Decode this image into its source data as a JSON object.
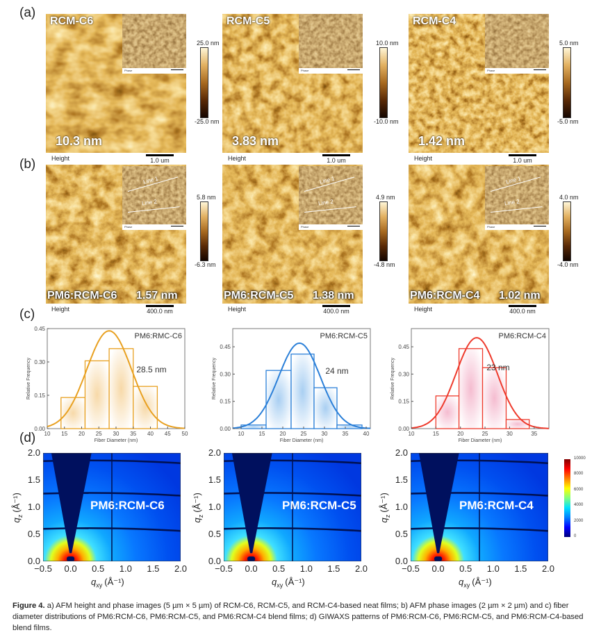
{
  "panel_labels": [
    "(a)",
    "(b)",
    "(c)",
    "(d)"
  ],
  "afm_neat": [
    {
      "name": "RCM-C6",
      "roughness": "10.3 nm",
      "cbar_max": "25.0 nm",
      "cbar_min": "-25.0 nm",
      "mode": "Height",
      "scale": "1.0 um",
      "inset_mode": "Phase"
    },
    {
      "name": "RCM-C5",
      "roughness": "3.83 nm",
      "cbar_max": "10.0 nm",
      "cbar_min": "-10.0 nm",
      "mode": "Height",
      "scale": "1.0 um",
      "inset_mode": "Phase"
    },
    {
      "name": "RCM-C4",
      "roughness": "1.42 nm",
      "cbar_max": "5.0 nm",
      "cbar_min": "-5.0 nm",
      "mode": "Height",
      "scale": "1.0 um",
      "inset_mode": "Phase"
    }
  ],
  "afm_blend": [
    {
      "name": "PM6:RCM-C6",
      "roughness": "1.57 nm",
      "cbar_max": "5.8 nm",
      "cbar_min": "-6.3 nm",
      "mode": "Height",
      "scale": "400.0 nm",
      "inset_mode": "Phase",
      "line1": "Line 1",
      "line2": "Line 2"
    },
    {
      "name": "PM6:RCM-C5",
      "roughness": "1.38 nm",
      "cbar_max": "4.9 nm",
      "cbar_min": "-4.8 nm",
      "mode": "Height",
      "scale": "400.0 nm",
      "inset_mode": "Phase",
      "line1": "Line 1",
      "line2": "Line 2"
    },
    {
      "name": "PM6:RCM-C4",
      "roughness": "1.02 nm",
      "cbar_max": "4.0 nm",
      "cbar_min": "-4.0 nm",
      "mode": "Height",
      "scale": "400.0 nm",
      "inset_mode": "Phase",
      "line1": "Line 1",
      "line2": "Line 2"
    }
  ],
  "chart_data": [
    {
      "type": "bar",
      "title": "PM6:RMC-C6",
      "annotation": "28.5 nm",
      "xlabel": "Fiber Diameter (nm)",
      "ylabel": "Relative Frequency",
      "xlim": [
        10,
        50
      ],
      "ylim": [
        0,
        0.45
      ],
      "xticks": [
        10,
        15,
        20,
        25,
        30,
        35,
        40,
        45,
        50
      ],
      "yticks": [
        "0.00",
        "0.15",
        "0.30",
        "0.45"
      ],
      "bins": [
        [
          14,
          21
        ],
        [
          21,
          28
        ],
        [
          28,
          35
        ],
        [
          35,
          42
        ]
      ],
      "values": [
        0.14,
        0.305,
        0.36,
        0.19
      ],
      "fit": {
        "type": "gaussian",
        "center": 28,
        "peak": 0.44,
        "sigma": 6.5
      },
      "color": "#e8a020",
      "fill": "#f7d9a8"
    },
    {
      "type": "bar",
      "title": "PM6:RCM-C5",
      "annotation": "24 nm",
      "xlabel": "Fiber Diameter (nm)",
      "ylabel": "Relative Frequency",
      "xlim": [
        8,
        41
      ],
      "ylim": [
        0,
        0.55
      ],
      "xticks": [
        10,
        15,
        20,
        25,
        30,
        35,
        40
      ],
      "yticks": [
        "0.00",
        "0.15",
        "0.30",
        "0.45"
      ],
      "bins": [
        [
          10,
          16
        ],
        [
          16,
          22
        ],
        [
          22,
          27.5
        ],
        [
          27.5,
          33
        ],
        [
          33,
          39
        ]
      ],
      "values": [
        0.02,
        0.32,
        0.41,
        0.225,
        0.02
      ],
      "fit": {
        "type": "gaussian",
        "center": 24,
        "peak": 0.47,
        "sigma": 5
      },
      "color": "#2a7fd8",
      "fill": "#a9cff2"
    },
    {
      "type": "bar",
      "title": "PM6:RCM-C4",
      "annotation": "23 nm",
      "xlabel": "Fiber Diameter (nm)",
      "ylabel": "Relative Frequency",
      "xlim": [
        10,
        38
      ],
      "ylim": [
        0,
        0.55
      ],
      "xticks": [
        10,
        15,
        20,
        25,
        30,
        35
      ],
      "yticks": [
        "0.00",
        "0.15",
        "0.30",
        "0.45"
      ],
      "bins": [
        [
          15,
          19.7
        ],
        [
          19.7,
          24.5
        ],
        [
          24.5,
          29.3
        ],
        [
          29.3,
          34
        ]
      ],
      "values": [
        0.18,
        0.44,
        0.335,
        0.05
      ],
      "fit": {
        "type": "gaussian",
        "center": 23.3,
        "peak": 0.5,
        "sigma": 4.2
      },
      "color": "#ee3a2c",
      "fill": "#f5bcd0"
    }
  ],
  "giwaxs": {
    "panels": [
      "PM6:RCM-C6",
      "PM6:RCM-C5",
      "PM6:RCM-C4"
    ],
    "xlabel": "q",
    "xlabel_sub": "xy",
    "ylabel": "q",
    "ylabel_sub": "z",
    "unit": "(Å⁻¹)",
    "xlim": [
      -0.5,
      2.0
    ],
    "ylim": [
      0.0,
      2.0
    ],
    "xticks": [
      "−0.5",
      "0.0",
      "0.5",
      "1.0",
      "1.5",
      "2.0"
    ],
    "yticks": [
      "0.0",
      "0.5",
      "1.0",
      "1.5",
      "2.0"
    ],
    "colorbar_ticks": [
      "0",
      "2000",
      "4000",
      "6000",
      "8000",
      "10000"
    ],
    "colormap": "jet"
  },
  "caption": {
    "lead": "Figure 4.",
    "text": " a) AFM height and phase images (5 µm × 5 µm) of RCM-C6, RCM-C5, and RCM-C4-based neat films; b) AFM phase images (2 µm × 2 µm) and c) fiber diameter distributions of PM6:RCM-C6, PM6:RCM-C5, and PM6:RCM-C4 blend films; d) GIWAXS patterns of PM6:RCM-C6, PM6:RCM-C5, and PM6:RCM-C4-based blend films."
  }
}
